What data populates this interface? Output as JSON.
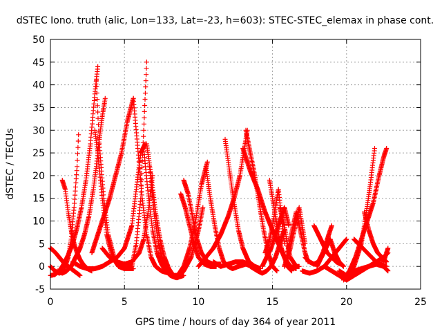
{
  "chart_data": {
    "type": "scatter",
    "title": "dSTEC Iono. truth (alic, Lon=133, Lat=-23, h=603): STEC-STEC_elemax in phase cont.",
    "xlabel": "GPS time / hours of day 364 of year 2011",
    "ylabel": "dSTEC  / TECUs",
    "xlim": [
      0,
      25
    ],
    "ylim": [
      -5,
      50
    ],
    "xticks": [
      "0",
      "5",
      "10",
      "15",
      "20",
      "25"
    ],
    "yticks": [
      "-5",
      "0",
      "5",
      "10",
      "15",
      "20",
      "25",
      "30",
      "35",
      "40",
      "45",
      "50"
    ],
    "grid": true,
    "marker": "plus",
    "colors": {
      "series": "#ff0000",
      "grid": "#a0a0a0",
      "axes": "#000000"
    },
    "series": [
      {
        "x": [
          0.0,
          0.2,
          0.4,
          0.6,
          0.8,
          1.0,
          1.2,
          1.4,
          1.6,
          1.8,
          2.0
        ],
        "y": [
          4,
          3.5,
          2.8,
          2,
          1.2,
          0.4,
          0,
          -0.5,
          -1,
          -1.5,
          -2
        ]
      },
      {
        "x": [
          0.0,
          0.3,
          0.6,
          0.9,
          1.2,
          1.5,
          1.8,
          2.1,
          2.4,
          2.7,
          3.0,
          3.2
        ],
        "y": [
          -2,
          -1.8,
          -1,
          0.5,
          2.5,
          5,
          8.5,
          13,
          19,
          27,
          38,
          44
        ]
      },
      {
        "x": [
          0.0,
          0.3,
          0.6,
          0.9,
          1.2,
          1.4,
          1.6,
          1.8,
          1.9
        ],
        "y": [
          0,
          -1,
          -1.5,
          -1,
          2,
          6,
          13,
          22,
          29
        ]
      },
      {
        "x": [
          0.8,
          1.0,
          1.2,
          1.4,
          1.6,
          1.8,
          2.0,
          2.2,
          2.5,
          2.8
        ],
        "y": [
          19,
          17,
          12,
          8,
          5,
          3,
          1.5,
          0.5,
          -0.5,
          -1
        ]
      },
      {
        "x": [
          0.5,
          0.8,
          1.1,
          1.4,
          1.7,
          2.0,
          2.3,
          2.6,
          2.9,
          3.1,
          3.3,
          3.5,
          3.7
        ],
        "y": [
          -1,
          -1.5,
          -1,
          0,
          2,
          4,
          7,
          11,
          17,
          22,
          28,
          33,
          37
        ]
      },
      {
        "x": [
          3.0,
          3.2,
          3.5,
          3.8,
          4.2,
          4.6,
          5.0,
          5.4,
          5.6
        ],
        "y": [
          30,
          25,
          15,
          7,
          2,
          0,
          -0.5,
          -0.5,
          -0.5
        ]
      },
      {
        "x": [
          3.1,
          3.3,
          3.6,
          3.9,
          4.3,
          4.7,
          5.1,
          5.5,
          5.8,
          6.1,
          6.3,
          6.5
        ],
        "y": [
          41,
          27,
          15,
          7,
          2,
          0,
          -0.5,
          0,
          5,
          15,
          30,
          45
        ]
      },
      {
        "x": [
          2.8,
          3.2,
          3.6,
          4.0,
          4.4,
          4.8,
          5.2,
          5.6
        ],
        "y": [
          3,
          7,
          11,
          15,
          20,
          25,
          32,
          37
        ]
      },
      {
        "x": [
          5.6,
          5.9,
          6.2,
          6.5,
          6.8,
          7.1,
          7.5,
          8.0
        ],
        "y": [
          37,
          26,
          15,
          7,
          2,
          0,
          -1,
          -1.5
        ]
      },
      {
        "x": [
          1.5,
          2.0,
          2.5,
          3.0,
          3.5,
          4.0,
          4.5,
          5.0,
          5.5,
          5.8,
          6.1,
          6.4
        ],
        "y": [
          1,
          0,
          -0.5,
          -0.5,
          0,
          1,
          2,
          4,
          9,
          17,
          25,
          27
        ]
      },
      {
        "x": [
          3.5,
          4.0,
          4.5,
          5.0,
          5.5,
          6.0,
          6.3,
          6.6,
          6.9
        ],
        "y": [
          4,
          2,
          1,
          0.5,
          1,
          3,
          6,
          12,
          20
        ]
      },
      {
        "x": [
          6.3,
          6.6,
          6.9,
          7.2,
          7.5,
          7.8,
          8.1,
          8.5,
          9.0
        ],
        "y": [
          26,
          16,
          8,
          3,
          0.5,
          -1,
          -2,
          -2.5,
          -2
        ]
      },
      {
        "x": [
          6.5,
          6.8,
          7.1,
          7.4,
          7.7,
          8.0,
          8.3,
          8.6,
          9.0,
          9.5,
          10.0,
          10.3
        ],
        "y": [
          27,
          20,
          12,
          6,
          2,
          -0.5,
          -2,
          -2.5,
          -1,
          2,
          8,
          13
        ]
      },
      {
        "x": [
          6.7,
          7.0,
          7.3,
          7.6,
          7.9,
          8.2,
          8.6,
          9.0,
          9.4,
          9.8,
          10.2,
          10.6
        ],
        "y": [
          22,
          12,
          5,
          1,
          -1,
          -2,
          -2,
          0,
          4,
          10,
          18,
          23
        ]
      },
      {
        "x": [
          8.8,
          9.1,
          9.4,
          9.7,
          10.0,
          10.4,
          10.8,
          11.2
        ],
        "y": [
          16,
          13,
          9,
          5,
          2,
          0.5,
          0,
          0
        ]
      },
      {
        "x": [
          9.0,
          9.3,
          9.6,
          9.9,
          10.2,
          10.6,
          11.0,
          11.5
        ],
        "y": [
          19,
          16,
          11,
          6,
          3,
          1,
          0.5,
          0.5
        ]
      },
      {
        "x": [
          10.5,
          10.8,
          11.1,
          11.4,
          11.7,
          12.0,
          12.3,
          12.7,
          13.2,
          13.6
        ],
        "y": [
          22,
          15,
          9,
          4,
          1,
          0,
          -0.5,
          0,
          0.5,
          0
        ]
      },
      {
        "x": [
          10.0,
          10.5,
          11.0,
          11.5,
          12.0,
          12.4,
          12.8,
          13.1,
          13.3
        ],
        "y": [
          0,
          2,
          4,
          7,
          11,
          15,
          20,
          26,
          30
        ]
      },
      {
        "x": [
          11.0,
          11.5,
          12.0,
          12.5,
          13.0,
          13.4,
          13.8
        ],
        "y": [
          1,
          0,
          0.5,
          1,
          1,
          0.5,
          0
        ]
      },
      {
        "x": [
          11.8,
          12.1,
          12.4,
          12.7,
          13.0,
          13.4,
          13.8,
          14.2
        ],
        "y": [
          28,
          21,
          14,
          8,
          4,
          1,
          0,
          -0.5
        ]
      },
      {
        "x": [
          13.2,
          13.5,
          13.8,
          14.1,
          14.4,
          14.7,
          15.0,
          15.3
        ],
        "y": [
          30,
          25,
          20,
          14,
          8,
          3,
          0,
          -1
        ]
      },
      {
        "x": [
          13.0,
          13.5,
          14.0,
          14.5,
          15.0,
          15.4,
          15.8,
          16.2,
          16.6
        ],
        "y": [
          26,
          21,
          17,
          12,
          8,
          5,
          2,
          0,
          -0.5
        ]
      },
      {
        "x": [
          13.5,
          14.0,
          14.3,
          14.6,
          14.9,
          15.2,
          15.5,
          15.8
        ],
        "y": [
          0,
          -1,
          -1.5,
          -1,
          0,
          2,
          5,
          8
        ]
      },
      {
        "x": [
          14.8,
          15.0,
          15.2,
          15.4,
          15.6,
          15.8,
          16.0,
          16.3
        ],
        "y": [
          19,
          15,
          11,
          7,
          4,
          2,
          0,
          -1
        ]
      },
      {
        "x": [
          14.5,
          14.8,
          15.0,
          15.2,
          15.4,
          15.6,
          15.8
        ],
        "y": [
          3,
          6,
          9,
          13,
          17,
          11,
          5
        ]
      },
      {
        "x": [
          14.3,
          14.6,
          14.9,
          15.2,
          15.5,
          15.8,
          16.1
        ],
        "y": [
          0,
          2,
          4,
          7,
          10,
          13,
          9
        ]
      },
      {
        "x": [
          15.5,
          15.8,
          16.0,
          16.2,
          16.4,
          16.6,
          16.8
        ],
        "y": [
          13,
          9,
          5,
          2,
          1,
          0,
          0
        ]
      },
      {
        "x": [
          15.8,
          16.0,
          16.2,
          16.4,
          16.6,
          16.8,
          17.0,
          17.2
        ],
        "y": [
          0,
          2,
          4,
          7,
          10,
          13,
          9,
          5
        ]
      },
      {
        "x": [
          16.0,
          16.2,
          16.4,
          16.6,
          16.8,
          17.0,
          17.2,
          17.4
        ],
        "y": [
          3,
          6,
          9,
          12,
          9,
          6,
          3,
          1
        ]
      },
      {
        "x": [
          17.2,
          17.5,
          17.8,
          18.1,
          18.4,
          18.7,
          19.0
        ],
        "y": [
          2,
          1,
          0.5,
          1,
          3,
          6,
          9
        ]
      },
      {
        "x": [
          17.8,
          18.1,
          18.4,
          18.7,
          19.0,
          19.3,
          19.6
        ],
        "y": [
          9,
          7,
          5,
          3,
          2,
          1,
          0.5
        ]
      },
      {
        "x": [
          18.0,
          18.3,
          18.6,
          18.9,
          19.2,
          19.5,
          19.8
        ],
        "y": [
          0,
          2,
          4,
          6,
          3,
          1,
          0
        ]
      },
      {
        "x": [
          17.0,
          17.5,
          18.0,
          18.5,
          19.0,
          19.5,
          20.0
        ],
        "y": [
          -1,
          -1.5,
          -1,
          0,
          2,
          4,
          6
        ]
      },
      {
        "x": [
          18.5,
          19.0,
          19.5,
          20.0,
          20.5,
          21.0,
          21.5,
          22.0,
          22.5,
          22.8
        ],
        "y": [
          0,
          -1,
          -2,
          -3,
          -2,
          -1,
          0,
          1,
          2,
          3
        ]
      },
      {
        "x": [
          19.5,
          20.0,
          20.5,
          21.0,
          21.3,
          21.6,
          21.9
        ],
        "y": [
          -1,
          -2,
          0,
          5,
          11,
          18,
          26
        ]
      },
      {
        "x": [
          19.8,
          20.2,
          20.6,
          21.0,
          21.4,
          21.8,
          22.2,
          22.5,
          22.7
        ],
        "y": [
          -3,
          -1,
          2,
          6,
          10,
          14,
          20,
          24,
          26
        ]
      },
      {
        "x": [
          20.5,
          20.8,
          21.1,
          21.4,
          21.7,
          22.0,
          22.3,
          22.7
        ],
        "y": [
          6,
          5,
          4,
          3,
          2,
          1,
          0.5,
          0
        ]
      },
      {
        "x": [
          21.2,
          21.5,
          21.8,
          22.1,
          22.4,
          22.7
        ],
        "y": [
          12,
          8,
          5,
          3,
          2,
          1
        ]
      },
      {
        "x": [
          20.0,
          20.5,
          21.0,
          21.5,
          22.0,
          22.5,
          22.8
        ],
        "y": [
          -2,
          -1,
          -0.5,
          0,
          0.5,
          0,
          -1
        ]
      },
      {
        "x": [
          22.5,
          22.6,
          22.7,
          22.8
        ],
        "y": [
          1,
          2,
          3,
          4
        ]
      }
    ]
  }
}
